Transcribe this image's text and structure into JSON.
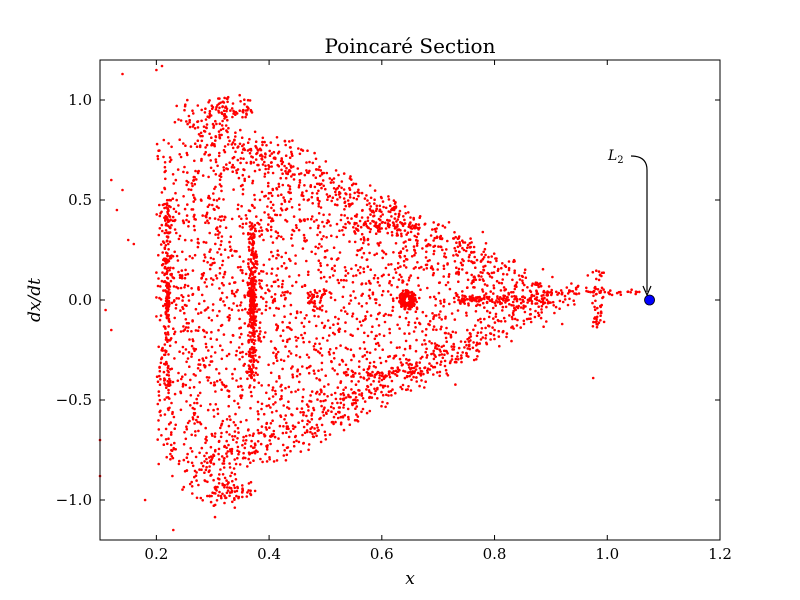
{
  "chart_data": {
    "type": "scatter",
    "title": "Poincaré Section",
    "xlabel": "x",
    "ylabel": "dx/dt",
    "xlim": [
      0.1,
      1.2
    ],
    "ylim": [
      -1.2,
      1.2
    ],
    "xticks": [
      0.2,
      0.4,
      0.6,
      0.8,
      1.0,
      1.2
    ],
    "xtick_labels": [
      "0.2",
      "0.4",
      "0.6",
      "0.8",
      "1.0",
      "1.2"
    ],
    "yticks": [
      1.0,
      0.5,
      0.0,
      -0.5,
      -1.0
    ],
    "ytick_labels": [
      "1.0",
      "0.5",
      "0.0",
      "−0.5",
      "−1.0"
    ],
    "grid": false,
    "marker_color": "#ff0000",
    "highlight_color": "#0000ff",
    "highlight_point": {
      "x": 1.075,
      "y": 0.0
    },
    "annotation": {
      "main": "L",
      "sub": "2",
      "x": 1.075,
      "y": 0.0
    },
    "series": [
      {
        "values": [
          {
            "x": 0.22,
            "y": 0.0
          },
          {
            "x": 0.37,
            "y": 0.0
          },
          {
            "x": 0.48,
            "y": 0.0
          },
          {
            "x": 0.645,
            "y": 0.0
          },
          {
            "x": 0.8,
            "y": 0.0
          },
          {
            "x": 0.98,
            "y": 0.0
          },
          {
            "x": 0.33,
            "y": 0.95
          },
          {
            "x": 0.33,
            "y": -0.96
          },
          {
            "x": 0.6,
            "y": 0.37
          },
          {
            "x": 0.6,
            "y": -0.37
          },
          {
            "x": 0.92,
            "y": 0.03
          },
          {
            "x": 1.05,
            "y": 0.04
          }
        ]
      }
    ]
  }
}
